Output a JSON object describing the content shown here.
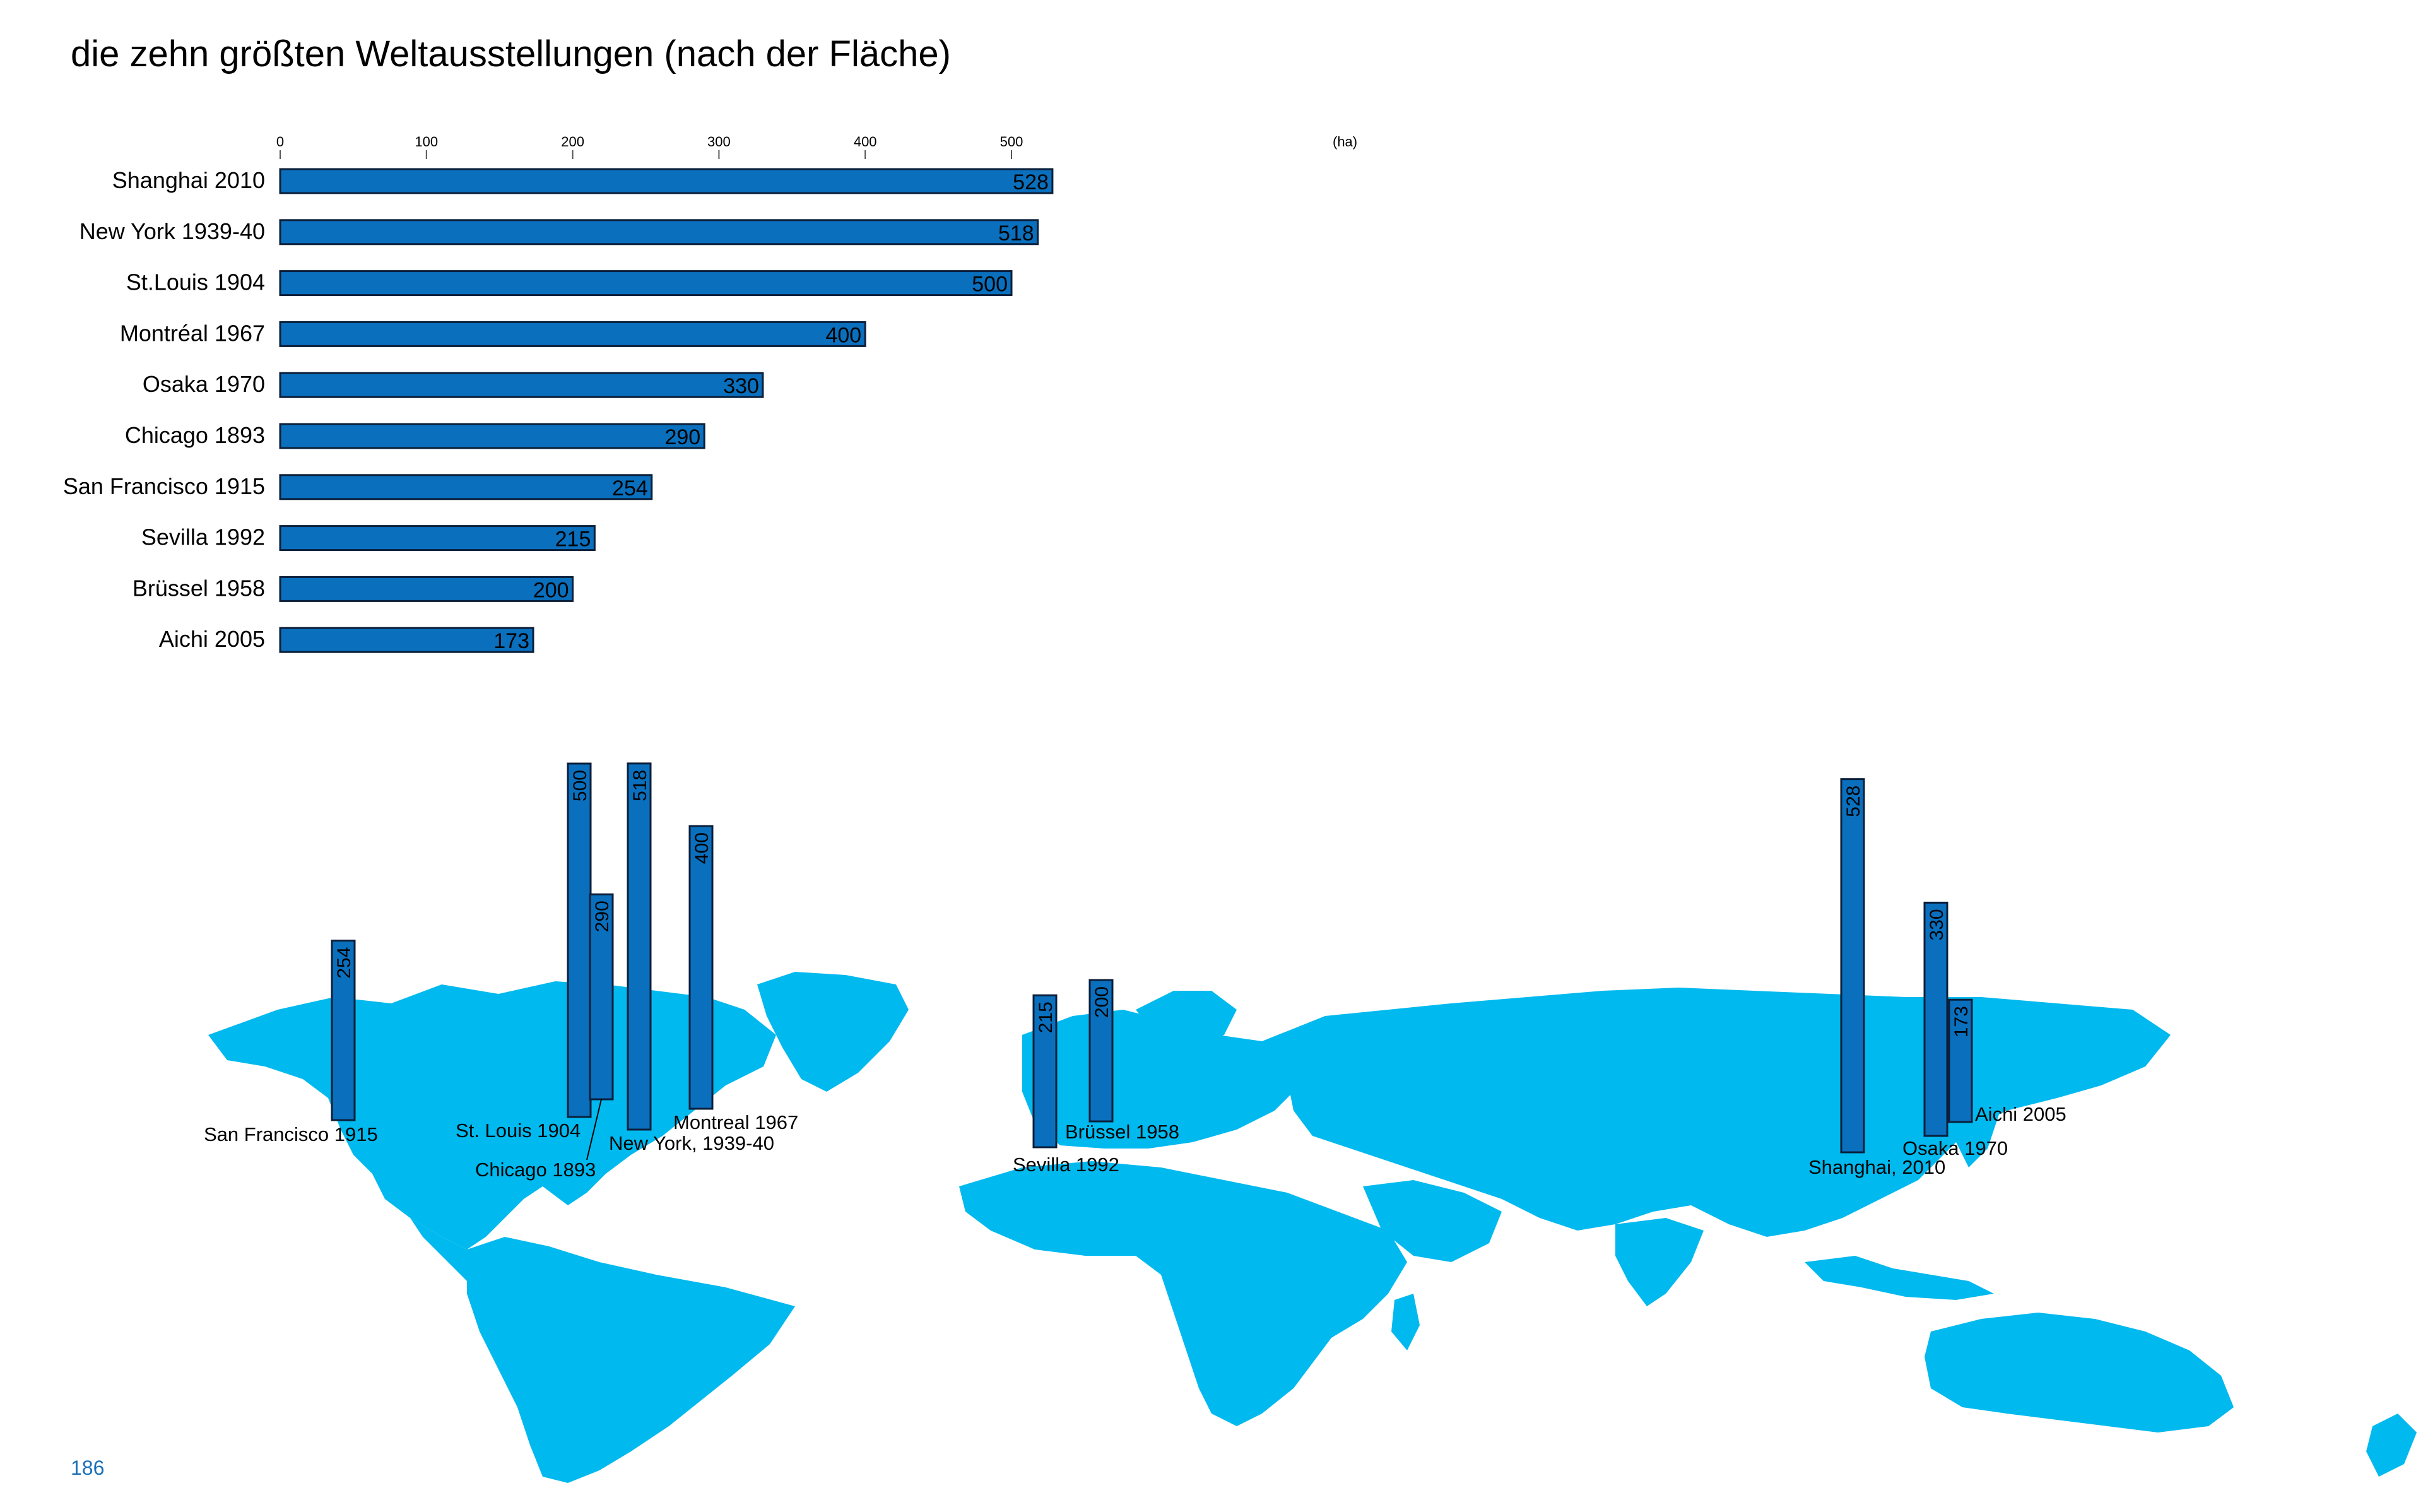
{
  "page": {
    "title": "die zehn größten Weltausstellungen (nach der Fläche)",
    "page_number": "186"
  },
  "colors": {
    "bar_fill": "#0a6fbd",
    "bar_stroke": "#0b1f3a",
    "land": "#00b9ee",
    "text": "#000000",
    "page_number": "#1a6fb8"
  },
  "chart_data": [
    {
      "type": "bar",
      "orientation": "horizontal",
      "categories": [
        "Shanghai 2010",
        "New York 1939-40",
        "St.Louis 1904",
        "Montréal 1967",
        "Osaka 1970",
        "Chicago 1893",
        "San Francisco 1915",
        "Sevilla 1992",
        "Brüssel 1958",
        "Aichi 2005"
      ],
      "values": [
        528,
        518,
        500,
        400,
        330,
        290,
        254,
        215,
        200,
        173
      ],
      "xlim": [
        0,
        528
      ],
      "xticks": [
        0,
        100,
        200,
        300,
        400,
        500
      ],
      "unit_label": "(ha)",
      "grid": false
    },
    {
      "type": "bar",
      "orientation": "vertical",
      "background": "world-map",
      "categories": [
        "San Francisco 1915",
        "St. Louis 1904",
        "Chicago 1893",
        "New York, 1939-40",
        "Montreal 1967",
        "Sevilla 1992",
        "Brüssel 1958",
        "Shanghai, 2010",
        "Osaka 1970",
        "Aichi 2005"
      ],
      "values": [
        254,
        500,
        290,
        518,
        400,
        215,
        200,
        528,
        330,
        173
      ]
    }
  ]
}
